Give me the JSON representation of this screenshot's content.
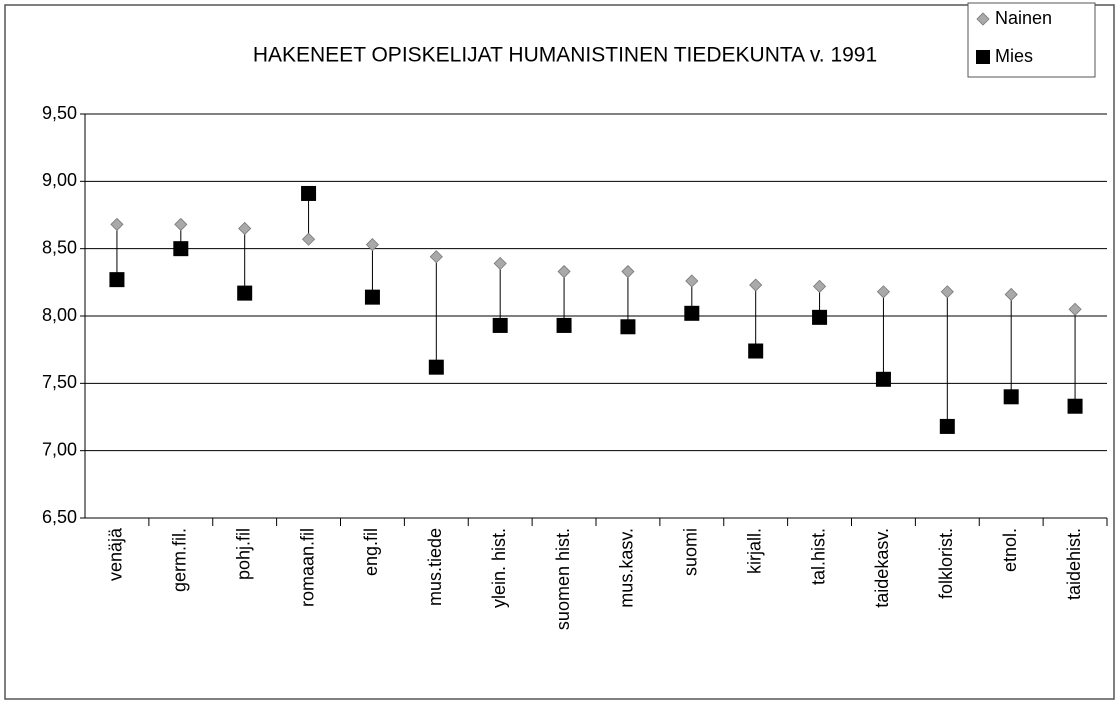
{
  "chart_data": {
    "type": "dot",
    "title": "HAKENEET OPISKELIJAT HUMANISTINEN TIEDEKUNTA v. 1991",
    "categories": [
      "venäjä",
      "germ.fil.",
      "pohj.fil",
      "romaan.fil",
      "eng.fil",
      "mus.tiede",
      "ylein. hist.",
      "suomen hist.",
      "mus.kasv.",
      "suomi",
      "kirjall.",
      "tal.hist.",
      "taidekasv.",
      "folklorist.",
      "etnol.",
      "taidehist."
    ],
    "series": [
      {
        "name": "Nainen",
        "color": "#a9a9a9",
        "marker": "diamond",
        "values": [
          8.68,
          8.68,
          8.65,
          8.57,
          8.53,
          8.44,
          8.39,
          8.33,
          8.33,
          8.26,
          8.23,
          8.22,
          8.18,
          8.18,
          8.16,
          8.05
        ]
      },
      {
        "name": "Mies",
        "color": "#000000",
        "marker": "square",
        "values": [
          8.27,
          8.5,
          8.17,
          8.91,
          8.14,
          7.62,
          7.93,
          7.93,
          7.92,
          8.02,
          7.74,
          7.99,
          7.53,
          7.18,
          7.4,
          7.33
        ]
      }
    ],
    "high_low_lines": true,
    "ylim": [
      6.5,
      9.5
    ],
    "yticks": [
      {
        "value": 6.5,
        "label": "6,50"
      },
      {
        "value": 7,
        "label": "7,00"
      },
      {
        "value": 7.5,
        "label": "7,50"
      },
      {
        "value": 8,
        "label": "8,00"
      },
      {
        "value": 8.5,
        "label": "8,50"
      },
      {
        "value": 9,
        "label": "9,00"
      },
      {
        "value": 9.5,
        "label": "9,50"
      }
    ],
    "grid": true,
    "legend": "top-right"
  }
}
